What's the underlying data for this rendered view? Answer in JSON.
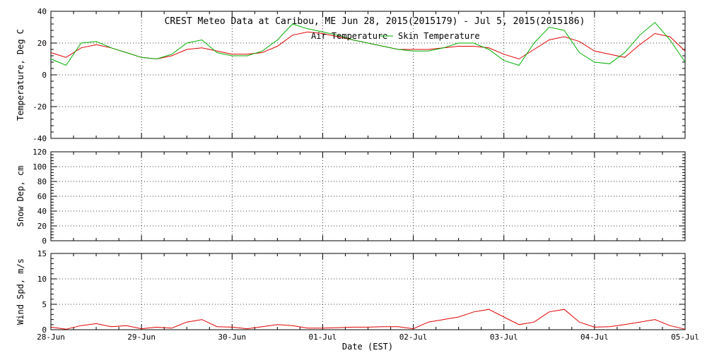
{
  "chart_data": [
    {
      "type": "line",
      "title": "CREST Meteo Data at Caribou, ME   Jun 28, 2015(2015179) - Jul  5, 2015(2015186)",
      "xlabel": "",
      "ylabel": "Temperature, Deg C",
      "xlim": [
        "2015-06-28",
        "2015-07-05"
      ],
      "ylim": [
        -40,
        40
      ],
      "y_ticks": [
        -40,
        -20,
        0,
        20,
        40
      ],
      "grid": true,
      "legend_position": "top-center",
      "series": [
        {
          "name": "Air Temperature",
          "color": "#e00000",
          "x": [
            "2015-06-28 00:00",
            "2015-06-28 04:00",
            "2015-06-28 08:00",
            "2015-06-28 12:00",
            "2015-06-28 16:00",
            "2015-06-28 20:00",
            "2015-06-29 00:00",
            "2015-06-29 04:00",
            "2015-06-29 08:00",
            "2015-06-29 12:00",
            "2015-06-29 16:00",
            "2015-06-29 20:00",
            "2015-06-30 00:00",
            "2015-06-30 04:00",
            "2015-06-30 08:00",
            "2015-06-30 12:00",
            "2015-06-30 16:00",
            "2015-06-30 20:00",
            "2015-07-01 00:00",
            "2015-07-01 04:00",
            "2015-07-01 08:00",
            "2015-07-01 12:00",
            "2015-07-01 16:00",
            "2015-07-01 20:00",
            "2015-07-02 00:00",
            "2015-07-02 04:00",
            "2015-07-02 08:00",
            "2015-07-02 12:00",
            "2015-07-02 16:00",
            "2015-07-02 20:00",
            "2015-07-03 00:00",
            "2015-07-03 04:00",
            "2015-07-03 08:00",
            "2015-07-03 12:00",
            "2015-07-03 16:00",
            "2015-07-03 20:00",
            "2015-07-04 00:00",
            "2015-07-04 04:00",
            "2015-07-04 08:00",
            "2015-07-04 12:00",
            "2015-07-04 16:00",
            "2015-07-04 20:00",
            "2015-07-05 00:00"
          ],
          "values": [
            14,
            11,
            17,
            19,
            17,
            14,
            11,
            10,
            12,
            16,
            17,
            15,
            13,
            13,
            14,
            18,
            25,
            27,
            26,
            24,
            22,
            20,
            18,
            16,
            16,
            16,
            17,
            18,
            18,
            17,
            13,
            10,
            16,
            22,
            24,
            21,
            15,
            13,
            11,
            19,
            26,
            24,
            15
          ]
        },
        {
          "name": "Skin Temperature",
          "color": "#00b000",
          "x": [
            "2015-06-28 00:00",
            "2015-06-28 04:00",
            "2015-06-28 08:00",
            "2015-06-28 12:00",
            "2015-06-28 16:00",
            "2015-06-28 20:00",
            "2015-06-29 00:00",
            "2015-06-29 04:00",
            "2015-06-29 08:00",
            "2015-06-29 12:00",
            "2015-06-29 16:00",
            "2015-06-29 20:00",
            "2015-06-30 00:00",
            "2015-06-30 04:00",
            "2015-06-30 08:00",
            "2015-06-30 12:00",
            "2015-06-30 16:00",
            "2015-06-30 20:00",
            "2015-07-01 00:00",
            "2015-07-01 04:00",
            "2015-07-01 08:00",
            "2015-07-01 12:00",
            "2015-07-01 16:00",
            "2015-07-01 20:00",
            "2015-07-02 00:00",
            "2015-07-02 04:00",
            "2015-07-02 08:00",
            "2015-07-02 12:00",
            "2015-07-02 16:00",
            "2015-07-02 20:00",
            "2015-07-03 00:00",
            "2015-07-03 04:00",
            "2015-07-03 08:00",
            "2015-07-03 12:00",
            "2015-07-03 16:00",
            "2015-07-03 20:00",
            "2015-07-04 00:00",
            "2015-07-04 04:00",
            "2015-07-04 08:00",
            "2015-07-04 12:00",
            "2015-07-04 16:00",
            "2015-07-04 20:00",
            "2015-07-05 00:00"
          ],
          "values": [
            10,
            6,
            20,
            21,
            17,
            14,
            11,
            10,
            13,
            20,
            22,
            14,
            12,
            12,
            15,
            22,
            32,
            29,
            27,
            25,
            22,
            20,
            18,
            16,
            15,
            15,
            17,
            20,
            20,
            16,
            9,
            6,
            20,
            30,
            28,
            14,
            8,
            7,
            14,
            25,
            33,
            22,
            8
          ]
        }
      ]
    },
    {
      "type": "line",
      "title": "",
      "xlabel": "",
      "ylabel": "Snow Dep, cm",
      "xlim": [
        "2015-06-28",
        "2015-07-05"
      ],
      "ylim": [
        0,
        120
      ],
      "y_ticks": [
        0,
        20,
        40,
        60,
        80,
        100,
        120
      ],
      "grid": true,
      "series": []
    },
    {
      "type": "line",
      "title": "",
      "xlabel": "Date (EST)",
      "ylabel": "Wind Spd, m/s",
      "xlim": [
        "2015-06-28",
        "2015-07-05"
      ],
      "ylim": [
        0,
        15
      ],
      "y_ticks": [
        0,
        5,
        10,
        15
      ],
      "grid": true,
      "x_tick_labels": [
        "28-Jun",
        "29-Jun",
        "30-Jun",
        "01-Jul",
        "02-Jul",
        "03-Jul",
        "04-Jul",
        "05-Jul"
      ],
      "series": [
        {
          "color": "#e00000",
          "x": [
            "2015-06-28 00:00",
            "2015-06-28 04:00",
            "2015-06-28 08:00",
            "2015-06-28 12:00",
            "2015-06-28 16:00",
            "2015-06-28 20:00",
            "2015-06-29 00:00",
            "2015-06-29 04:00",
            "2015-06-29 08:00",
            "2015-06-29 12:00",
            "2015-06-29 16:00",
            "2015-06-29 20:00",
            "2015-06-30 00:00",
            "2015-06-30 04:00",
            "2015-06-30 08:00",
            "2015-06-30 12:00",
            "2015-06-30 16:00",
            "2015-06-30 20:00",
            "2015-07-01 00:00",
            "2015-07-01 04:00",
            "2015-07-01 08:00",
            "2015-07-01 12:00",
            "2015-07-01 16:00",
            "2015-07-01 20:00",
            "2015-07-02 00:00",
            "2015-07-02 04:00",
            "2015-07-02 08:00",
            "2015-07-02 12:00",
            "2015-07-02 16:00",
            "2015-07-02 20:00",
            "2015-07-03 00:00",
            "2015-07-03 04:00",
            "2015-07-03 08:00",
            "2015-07-03 12:00",
            "2015-07-03 16:00",
            "2015-07-03 20:00",
            "2015-07-04 00:00",
            "2015-07-04 04:00",
            "2015-07-04 08:00",
            "2015-07-04 12:00",
            "2015-07-04 16:00",
            "2015-07-04 20:00",
            "2015-07-05 00:00"
          ],
          "values": [
            0.5,
            0.1,
            0.8,
            1.2,
            0.6,
            0.8,
            0.2,
            0.5,
            0.3,
            1.5,
            2.0,
            0.6,
            0.5,
            0.2,
            0.6,
            1.0,
            0.8,
            0.3,
            0.3,
            0.4,
            0.5,
            0.5,
            0.6,
            0.6,
            0.2,
            1.5,
            2.0,
            2.5,
            3.5,
            4.0,
            2.5,
            1.0,
            1.5,
            3.5,
            4.0,
            1.5,
            0.5,
            0.6,
            1.0,
            1.5,
            2.0,
            0.8,
            0.1
          ]
        }
      ]
    }
  ]
}
